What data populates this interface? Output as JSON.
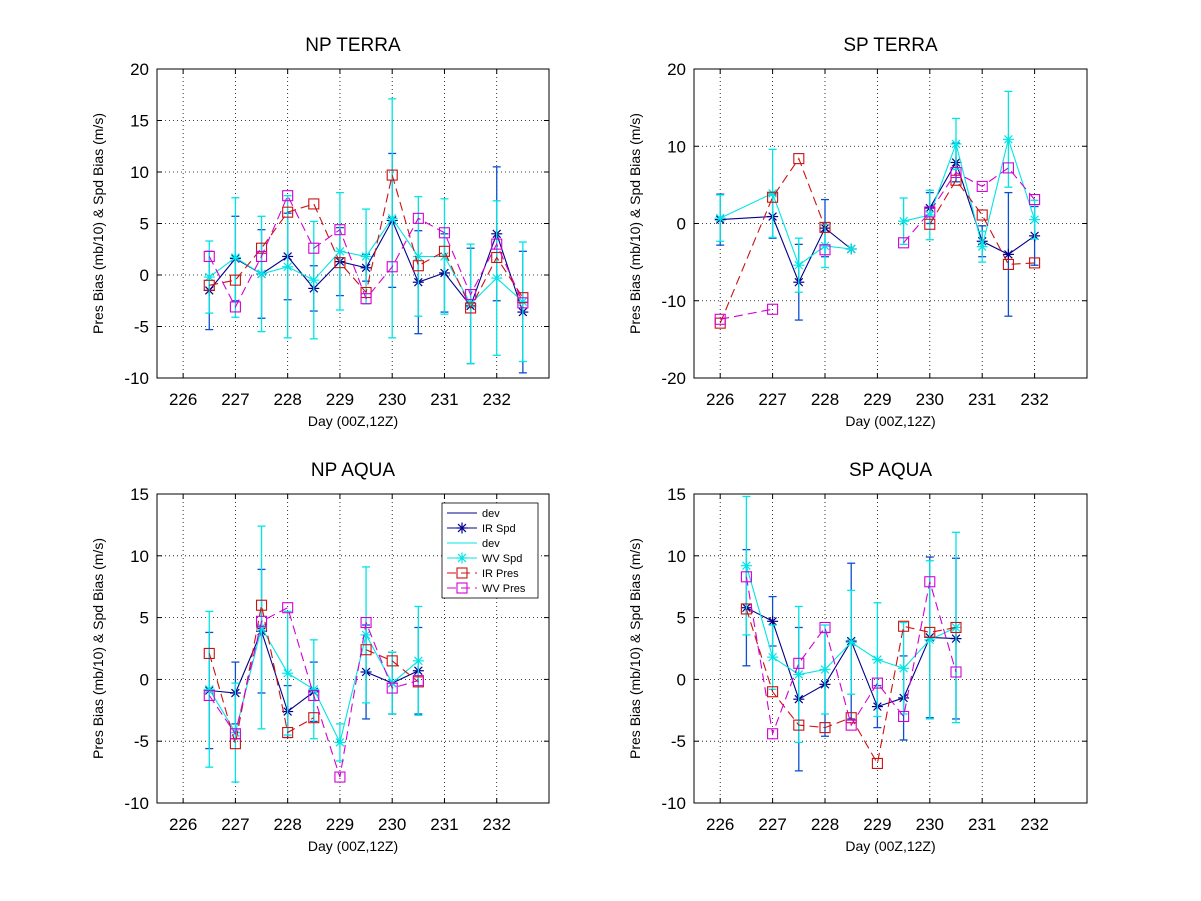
{
  "chart_data": [
    {
      "type": "line",
      "title": "NP TERRA",
      "xlabel": "Day (00Z,12Z)",
      "ylabel": "Pres Bias (mb/10) & Spd Bias (m/s)",
      "xlim": [
        225.5,
        233
      ],
      "ylim": [
        -10,
        20
      ],
      "xticks": [
        226,
        227,
        228,
        229,
        230,
        231,
        232
      ],
      "yticks": [
        -10,
        -5,
        0,
        5,
        10,
        15,
        20
      ],
      "grid": true,
      "series": [
        {
          "name": "IR Spd",
          "color": "#00008b",
          "x": [
            226.5,
            227,
            227.5,
            228,
            228.5,
            229,
            229.5,
            230,
            230.5,
            231,
            231.5,
            232,
            232.5
          ],
          "y": [
            -1.5,
            1.6,
            0.1,
            1.8,
            -1.3,
            1.3,
            0.7,
            5.3,
            -0.7,
            0.2,
            -3.0,
            4.0,
            -3.6
          ],
          "err": [
            3.8,
            4.1,
            4.3,
            4.2,
            2.2,
            3.3,
            1.3,
            6.5,
            5.0,
            3.8,
            5.6,
            6.5,
            5.9
          ]
        },
        {
          "name": "WV Spd",
          "color": "#00e5e5",
          "x": [
            226.5,
            227,
            227.5,
            228,
            228.5,
            229,
            229.5,
            230,
            230.5,
            231,
            231.5,
            232,
            232.5
          ],
          "y": [
            -0.2,
            1.7,
            0.1,
            0.8,
            -0.5,
            2.3,
            1.8,
            5.5,
            1.8,
            1.8,
            -2.8,
            -0.3,
            -2.6
          ],
          "err": [
            3.5,
            5.8,
            5.6,
            6.9,
            5.7,
            5.7,
            4.6,
            11.6,
            5.8,
            5.6,
            5.8,
            7.5,
            5.8
          ]
        },
        {
          "name": "IR Pres",
          "color": "#cc1111",
          "x": [
            226.5,
            227,
            227.5,
            228,
            228.5,
            229,
            229.5,
            230,
            230.5,
            231,
            231.5,
            232,
            232.5
          ],
          "y": [
            -1.0,
            -0.5,
            2.6,
            6.1,
            6.9,
            1.2,
            -1.7,
            9.7,
            0.9,
            2.3,
            -3.2,
            1.7,
            -2.2
          ]
        },
        {
          "name": "WV Pres",
          "color": "#d400d4",
          "x": [
            226.5,
            227,
            227.5,
            228,
            228.5,
            229,
            229.5,
            230,
            230.5,
            231,
            231.5,
            232,
            232.5
          ],
          "y": [
            1.8,
            -3.1,
            1.8,
            7.7,
            2.6,
            4.4,
            -2.3,
            0.8,
            5.5,
            4.1,
            -1.9,
            3.0,
            -2.7
          ]
        }
      ]
    },
    {
      "type": "line",
      "title": "SP TERRA",
      "xlabel": "Day (00Z,12Z)",
      "ylabel": "Pres Bias (mb/10) & Spd Bias (m/s)",
      "xlim": [
        225.5,
        233
      ],
      "ylim": [
        -20,
        20
      ],
      "xticks": [
        226,
        227,
        228,
        229,
        230,
        231,
        232
      ],
      "yticks": [
        -20,
        -10,
        0,
        10,
        20
      ],
      "grid": true,
      "series": [
        {
          "name": "IR Spd",
          "color": "#00008b",
          "x": [
            226,
            227,
            227.5,
            228,
            228.5,
            null,
            229.5,
            230,
            230.5,
            231,
            231.5,
            232
          ],
          "y": [
            0.5,
            0.9,
            -7.6,
            -0.6,
            -3.3,
            null,
            null,
            2.0,
            7.9,
            -2.3,
            -4.0,
            -1.6
          ],
          "err": [
            3.3,
            2.8,
            4.9,
            3.7,
            0,
            null,
            null,
            2.0,
            2.5,
            2.0,
            8.0,
            3.8
          ]
        },
        {
          "name": "WV Spd",
          "color": "#00e5e5",
          "x": [
            226,
            227,
            227.5,
            228,
            228.5,
            null,
            229.5,
            230,
            230.5,
            231,
            231.5,
            232
          ],
          "y": [
            0.7,
            3.9,
            -5.4,
            -2.9,
            -3.3,
            null,
            0.3,
            1.1,
            10.3,
            -3.0,
            10.9,
            0.5
          ],
          "err": [
            3.0,
            5.7,
            3.5,
            2.8,
            0,
            null,
            3.0,
            3.2,
            3.3,
            2.0,
            6.2,
            2.5
          ]
        },
        {
          "name": "IR Pres",
          "color": "#cc1111",
          "x": [
            226,
            227,
            227.5,
            228,
            228.5,
            null,
            229.5,
            230,
            230.5,
            231,
            231.5,
            232
          ],
          "y": [
            -12.9,
            3.4,
            8.4,
            -0.5,
            null,
            null,
            null,
            -0.1,
            5.6,
            1.1,
            -5.3,
            -5.1
          ]
        },
        {
          "name": "WV Pres",
          "color": "#d400d4",
          "x": [
            226,
            227,
            227.5,
            228,
            228.5,
            null,
            229.5,
            230,
            230.5,
            231,
            231.5,
            232
          ],
          "y": [
            -12.4,
            -11.1,
            null,
            -3.4,
            null,
            null,
            -2.5,
            1.5,
            6.6,
            4.8,
            7.2,
            3.1
          ]
        }
      ]
    },
    {
      "type": "line",
      "title": "NP AQUA",
      "xlabel": "Day (00Z,12Z)",
      "ylabel": "Pres Bias (mb/10) & Spd Bias (m/s)",
      "xlim": [
        225.5,
        233
      ],
      "ylim": [
        -10,
        15
      ],
      "xticks": [
        226,
        227,
        228,
        229,
        230,
        231,
        232
      ],
      "yticks": [
        -10,
        -5,
        0,
        5,
        10,
        15
      ],
      "grid": true,
      "legend": {
        "position": "top-right",
        "entries": [
          "dev",
          "IR Spd",
          "dev",
          "WV Spd",
          "IR Pres",
          "WV Pres"
        ]
      },
      "series": [
        {
          "name": "IR Spd",
          "color": "#00008b",
          "x": [
            226.5,
            227,
            227.5,
            228,
            228.5,
            229,
            229.5,
            230,
            230.5
          ],
          "y": [
            -0.9,
            -1.1,
            3.9,
            -2.6,
            -1.0,
            null,
            0.6,
            -0.3,
            0.7
          ],
          "err": [
            4.7,
            2.5,
            5.0,
            2.1,
            2.4,
            null,
            3.8,
            2.5,
            3.5
          ]
        },
        {
          "name": "WV Spd",
          "color": "#00e5e5",
          "x": [
            226.5,
            227,
            227.5,
            228,
            228.5,
            229,
            229.5,
            230,
            230.5
          ],
          "y": [
            -0.8,
            -4.3,
            4.2,
            0.5,
            -0.8,
            -5.1,
            3.6,
            -0.3,
            1.5
          ],
          "err": [
            6.3,
            4.0,
            8.2,
            5.0,
            4.0,
            1.5,
            5.5,
            2.5,
            4.4
          ]
        },
        {
          "name": "IR Pres",
          "color": "#cc1111",
          "x": [
            226.5,
            227,
            227.5,
            228,
            228.5,
            229,
            229.5,
            230,
            230.5
          ],
          "y": [
            2.1,
            -5.2,
            6.0,
            -4.3,
            -3.1,
            null,
            2.4,
            1.5,
            -0.2
          ]
        },
        {
          "name": "WV Pres",
          "color": "#d400d4",
          "x": [
            226.5,
            227,
            227.5,
            228,
            228.5,
            229,
            229.5,
            230,
            230.5
          ],
          "y": [
            -1.3,
            -4.4,
            4.7,
            5.8,
            -1.3,
            -7.9,
            4.6,
            -0.7,
            -0.1
          ]
        }
      ]
    },
    {
      "type": "line",
      "title": "SP AQUA",
      "xlabel": "Day (00Z,12Z)",
      "ylabel": "Pres Bias (mb/10) & Spd Bias (m/s)",
      "xlim": [
        225.5,
        233
      ],
      "ylim": [
        -10,
        15
      ],
      "xticks": [
        226,
        227,
        228,
        229,
        230,
        231,
        232
      ],
      "yticks": [
        -10,
        -5,
        0,
        5,
        10,
        15
      ],
      "grid": true,
      "series": [
        {
          "name": "IR Spd",
          "color": "#00008b",
          "x": [
            226.5,
            227,
            227.5,
            228,
            228.5,
            229,
            229.5,
            230,
            230.5
          ],
          "y": [
            5.8,
            4.7,
            -1.6,
            -0.4,
            3.1,
            -2.2,
            -1.5,
            3.4,
            3.3
          ],
          "err": [
            4.7,
            2.0,
            5.8,
            4.2,
            6.3,
            1.7,
            3.4,
            6.5,
            6.5
          ]
        },
        {
          "name": "WV Spd",
          "color": "#00e5e5",
          "x": [
            226.5,
            227,
            227.5,
            228,
            228.5,
            229,
            229.5,
            230,
            230.5
          ],
          "y": [
            9.2,
            1.8,
            0.4,
            0.8,
            3.0,
            1.6,
            0.9,
            3.2,
            4.2
          ],
          "err": [
            5.6,
            2.6,
            5.5,
            3.6,
            4.2,
            4.6,
            3.7,
            6.4,
            7.7
          ]
        },
        {
          "name": "IR Pres",
          "color": "#cc1111",
          "x": [
            226.5,
            227,
            227.5,
            228,
            228.5,
            229,
            229.5,
            230,
            230.5
          ],
          "y": [
            5.7,
            -1.0,
            -3.7,
            -3.9,
            -3.1,
            -6.8,
            4.3,
            3.8,
            4.2
          ]
        },
        {
          "name": "WV Pres",
          "color": "#d400d4",
          "x": [
            226.5,
            227,
            227.5,
            228,
            228.5,
            229,
            229.5,
            230,
            230.5
          ],
          "y": [
            8.3,
            -4.4,
            1.3,
            4.2,
            -3.7,
            -0.3,
            -3.0,
            7.9,
            0.6
          ]
        }
      ]
    }
  ],
  "styles": {
    "IR Spd": {
      "color": "#00008b",
      "marker": "asterisk",
      "dash": "",
      "errcolor": "#0b4fd1"
    },
    "WV Spd": {
      "color": "#00e5e5",
      "marker": "asterisk",
      "dash": "",
      "errcolor": "#00e5e5"
    },
    "IR Pres": {
      "color": "#cc1111",
      "marker": "square",
      "dash": "9 5",
      "errcolor": null
    },
    "WV Pres": {
      "color": "#d400d4",
      "marker": "square",
      "dash": "9 5",
      "errcolor": null
    }
  }
}
